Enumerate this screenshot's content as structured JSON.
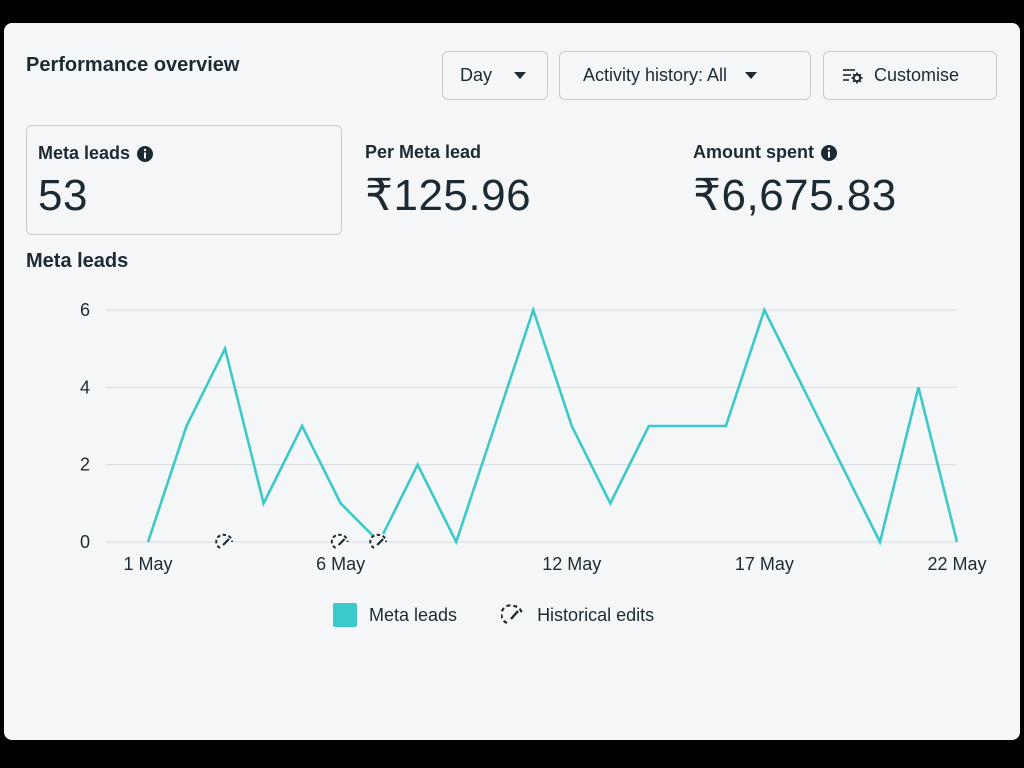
{
  "header": {
    "title": "Performance overview",
    "day_label": "Day",
    "activity_label": "Activity history: All",
    "customise_label": "Customise"
  },
  "metrics": [
    {
      "label": "Meta leads",
      "value": "53",
      "has_info": true
    },
    {
      "label": "Per Meta lead",
      "value": "₹125.96",
      "has_info": false
    },
    {
      "label": "Amount spent",
      "value": "₹6,675.83",
      "has_info": true
    }
  ],
  "chart": {
    "title": "Meta leads",
    "legend": {
      "series": "Meta leads",
      "edits": "Historical edits"
    }
  },
  "colors": {
    "line": "#3cc9c9",
    "grid": "#d8dbdf",
    "text": "#1c2b33"
  },
  "chart_data": {
    "type": "line",
    "title": "Meta leads",
    "x": [
      "1 May",
      "2 May",
      "3 May",
      "4 May",
      "5 May",
      "6 May",
      "7 May",
      "8 May",
      "9 May",
      "10 May",
      "11 May",
      "12 May",
      "13 May",
      "14 May",
      "15 May",
      "16 May",
      "17 May",
      "18 May",
      "19 May",
      "20 May",
      "21 May",
      "22 May"
    ],
    "series": [
      {
        "name": "Meta leads",
        "values": [
          0,
          3,
          5,
          1,
          3,
          1,
          0,
          2,
          0,
          3,
          6,
          3,
          1,
          3,
          3,
          3,
          6,
          4,
          2,
          0,
          4,
          0
        ]
      }
    ],
    "x_tick_labels": [
      "1 May",
      "6 May",
      "12 May",
      "17 May",
      "22 May"
    ],
    "y_ticks": [
      0,
      2,
      4,
      6
    ],
    "ylim": [
      0,
      6
    ],
    "historical_edits_at": [
      "3 May",
      "6 May",
      "7 May"
    ],
    "grid": true,
    "legend_position": "bottom"
  }
}
